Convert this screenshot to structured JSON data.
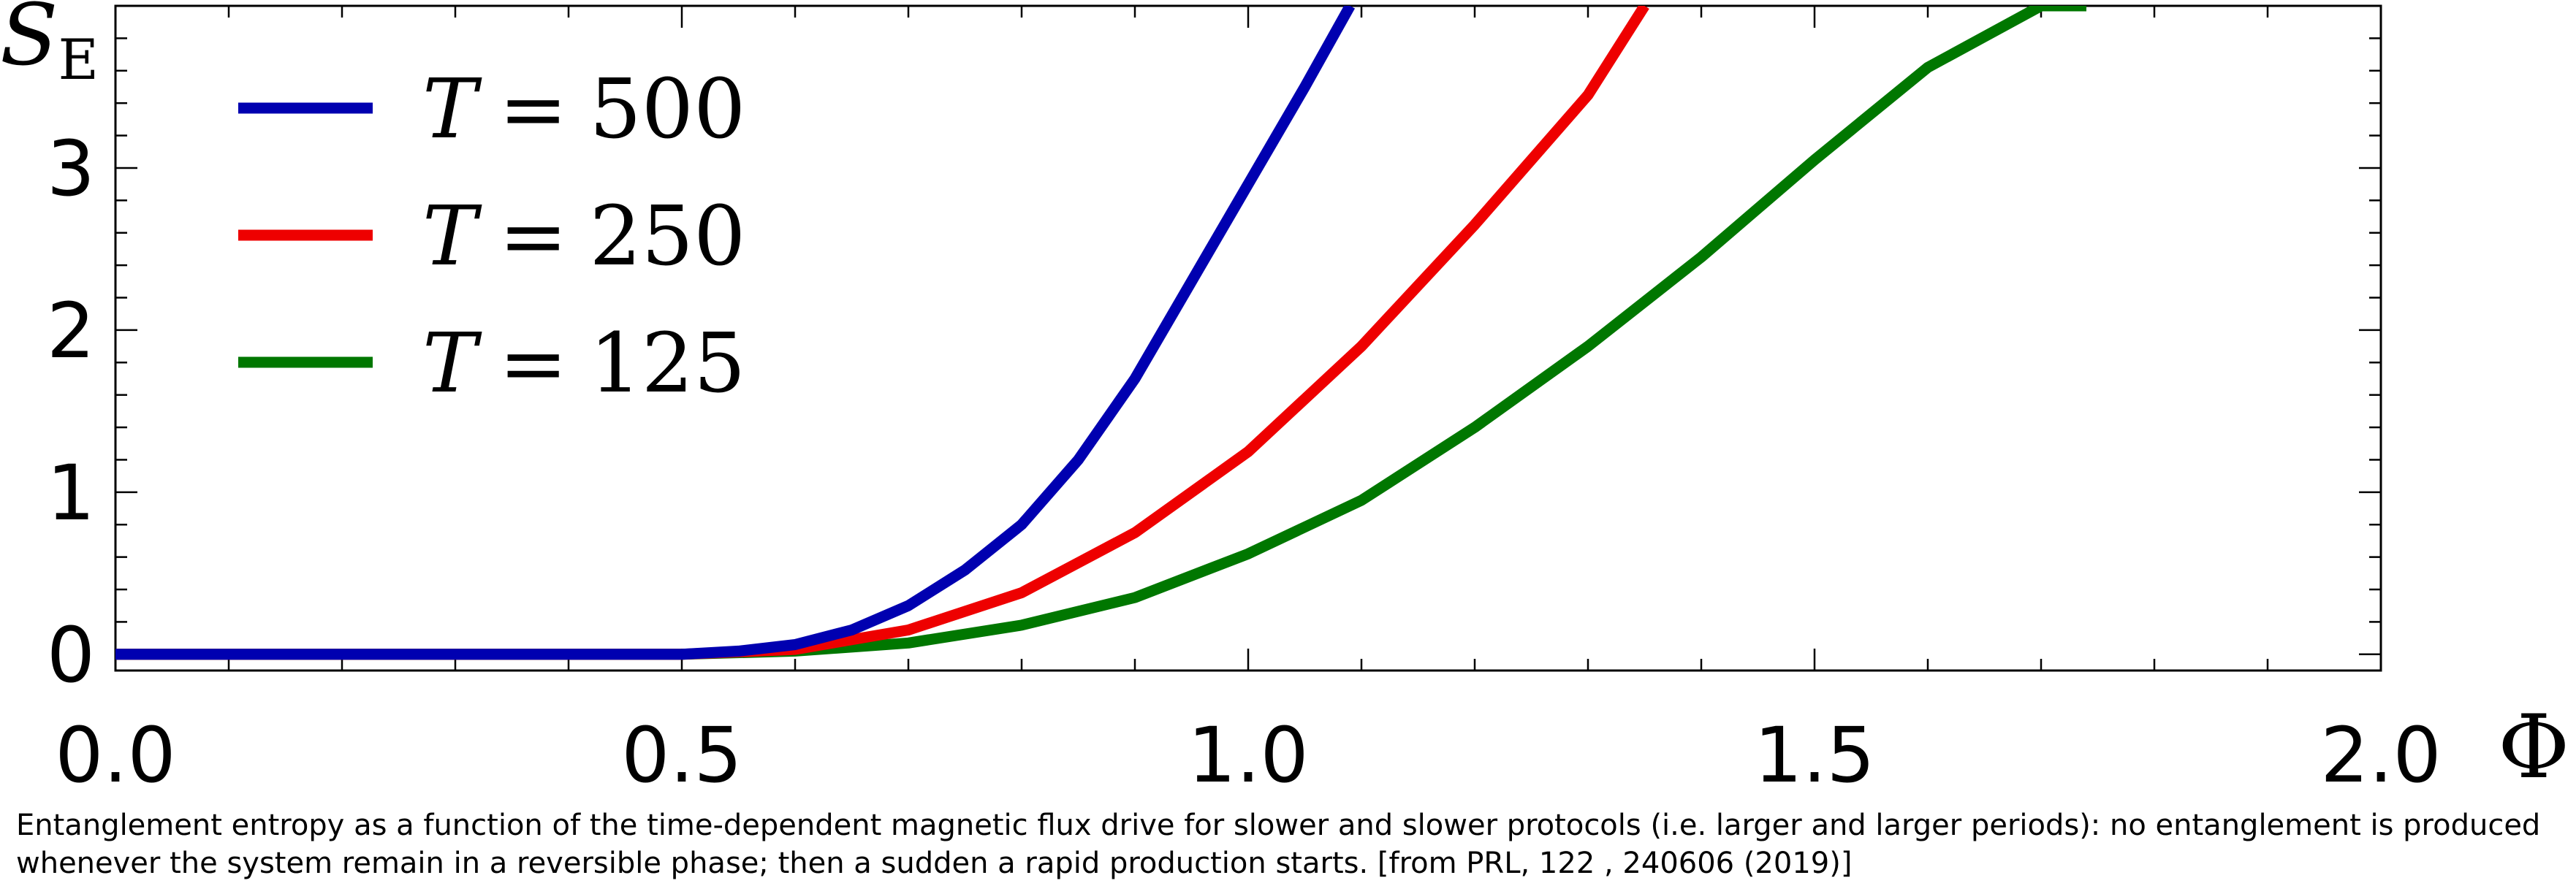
{
  "chart_data": {
    "type": "line",
    "x_label": "Φ",
    "y_label_main": "S",
    "y_label_sub": "E",
    "xlim": [
      0.0,
      2.0
    ],
    "ylim": [
      -0.1,
      4.0
    ],
    "x_ticks": [
      "0.0",
      "0.5",
      "1.0",
      "1.5",
      "2.0"
    ],
    "x_tick_values": [
      0.0,
      0.5,
      1.0,
      1.5,
      2.0
    ],
    "y_ticks": [
      "0",
      "1",
      "2",
      "3"
    ],
    "y_tick_values": [
      0,
      1,
      2,
      3
    ],
    "grid": false,
    "legend_position": "top-left",
    "series": [
      {
        "name": "T = 500",
        "var": "T",
        "value": "500",
        "color": "#0000b0",
        "x": [
          0.0,
          0.5,
          0.55,
          0.6,
          0.65,
          0.7,
          0.75,
          0.8,
          0.85,
          0.9,
          0.95,
          1.0,
          1.05,
          1.09
        ],
        "y": [
          0.0,
          0.0,
          0.02,
          0.06,
          0.15,
          0.3,
          0.52,
          0.8,
          1.2,
          1.7,
          2.3,
          2.9,
          3.5,
          4.0
        ]
      },
      {
        "name": "T = 250",
        "var": "T",
        "value": "250",
        "color": "#ee0000",
        "x": [
          0.0,
          0.5,
          0.6,
          0.7,
          0.8,
          0.9,
          1.0,
          1.1,
          1.2,
          1.3,
          1.35
        ],
        "y": [
          0.0,
          0.0,
          0.03,
          0.15,
          0.38,
          0.75,
          1.25,
          1.9,
          2.65,
          3.45,
          4.0
        ]
      },
      {
        "name": "T = 125",
        "var": "T",
        "value": "125",
        "color": "#007700",
        "x": [
          0.0,
          0.5,
          0.6,
          0.7,
          0.8,
          0.9,
          1.0,
          1.1,
          1.2,
          1.3,
          1.4,
          1.5,
          1.6,
          1.7,
          1.74
        ],
        "y": [
          0.0,
          0.0,
          0.02,
          0.07,
          0.18,
          0.35,
          0.62,
          0.95,
          1.4,
          1.9,
          2.45,
          3.05,
          3.62,
          4.0,
          4.0
        ]
      }
    ]
  },
  "caption": "Entanglement entropy as a function of the time-dependent magnetic flux drive for slower and slower protocols (i.e. larger and larger periods): no entanglement is produced whenever the system remain in a reversible phase; then a sudden a rapid production starts. [from PRL, 122 , 240606 (2019)]"
}
